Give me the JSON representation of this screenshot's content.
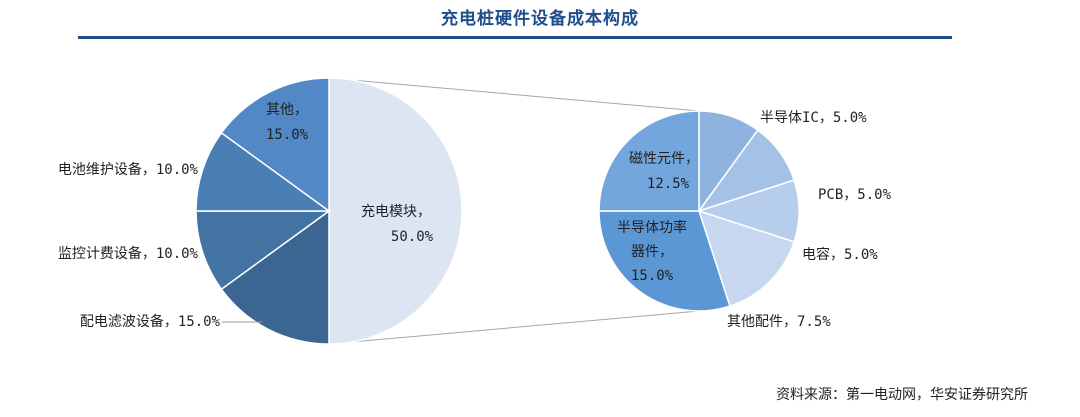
{
  "header": {
    "title": "充电桩硬件设备成本构成"
  },
  "footer": {
    "source": "资料来源：第一电动网，华安证券研究所"
  },
  "chart_data": {
    "type": "pie-of-pie",
    "main_pie": {
      "slices": [
        {
          "label": "充电模块",
          "value": 50.0,
          "text": "50.0%",
          "color": "#dde5f3"
        },
        {
          "label": "配电滤波设备",
          "value": 15.0,
          "text": "15.0%",
          "color": "#3a6691"
        },
        {
          "label": "监控计费设备",
          "value": 10.0,
          "text": "10.0%",
          "color": "#4373a3"
        },
        {
          "label": "电池维护设备",
          "value": 10.0,
          "text": "10.0%",
          "color": "#4a7fb5"
        },
        {
          "label": "其他",
          "value": 15.0,
          "text": "15.0%",
          "color": "#5288c6"
        }
      ]
    },
    "breakdown_pie": {
      "of": "充电模块",
      "slices": [
        {
          "label": "半导体IC",
          "value": 5.0,
          "text": "5.0%",
          "color": "#8fb3df"
        },
        {
          "label": "PCB",
          "value": 5.0,
          "text": "5.0%",
          "color": "#a4c1e6"
        },
        {
          "label": "电容",
          "value": 5.0,
          "text": "5.0%",
          "color": "#b6cdeb"
        },
        {
          "label": "其他配件",
          "value": 7.5,
          "text": "7.5%",
          "color": "#c6d7ef"
        },
        {
          "label": "半导体功率器件",
          "value": 15.0,
          "text": "15.0%",
          "color": "#5b97d4"
        },
        {
          "label": "磁性元件",
          "value": 12.5,
          "text": "12.5%",
          "color": "#72a6dc"
        }
      ]
    }
  }
}
